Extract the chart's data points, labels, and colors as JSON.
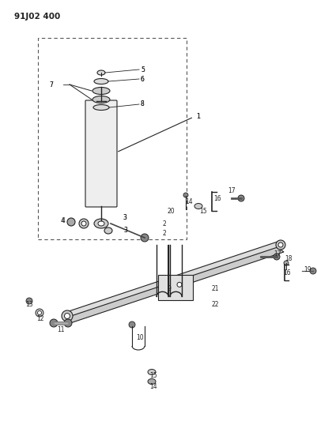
{
  "title": "91J02 400",
  "bg_color": "#ffffff",
  "fig_w": 4.02,
  "fig_h": 5.33,
  "dpi": 100
}
